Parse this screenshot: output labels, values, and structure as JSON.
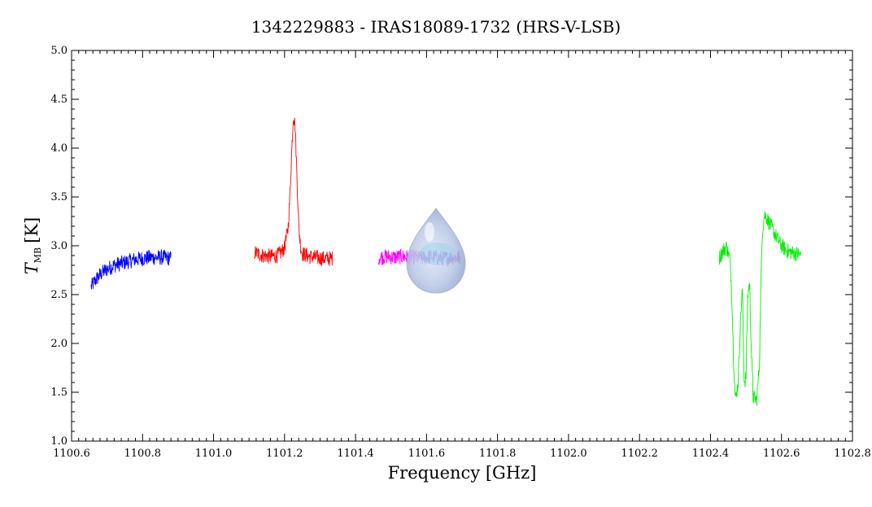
{
  "chart_data": {
    "type": "line",
    "title": "1342229883 - IRAS18089-1732 (HRS-V-LSB)",
    "xlabel": "Frequency [GHz]",
    "ylabel": {
      "symbol": "T",
      "subscript": "MB",
      "unit": "[K]"
    },
    "xlim": [
      1100.6,
      1102.8
    ],
    "ylim": [
      1.0,
      5.0
    ],
    "x_ticks": [
      "1100.6",
      "1100.8",
      "1101.0",
      "1101.2",
      "1101.4",
      "1101.6",
      "1101.8",
      "1102.0",
      "1102.2",
      "1102.4",
      "1102.6",
      "1102.8"
    ],
    "y_ticks": [
      "1.0",
      "1.5",
      "2.0",
      "2.5",
      "3.0",
      "3.5",
      "4.0",
      "4.5",
      "5.0"
    ],
    "grid": false,
    "series": [
      {
        "color": "#0000ff",
        "points": [
          [
            1100.655,
            2.58
          ],
          [
            1100.67,
            2.66
          ],
          [
            1100.685,
            2.72
          ],
          [
            1100.7,
            2.76
          ],
          [
            1100.72,
            2.8
          ],
          [
            1100.74,
            2.82
          ],
          [
            1100.76,
            2.84
          ],
          [
            1100.78,
            2.86
          ],
          [
            1100.8,
            2.87
          ],
          [
            1100.82,
            2.88
          ],
          [
            1100.84,
            2.88
          ],
          [
            1100.86,
            2.88
          ],
          [
            1100.88,
            2.87
          ]
        ]
      },
      {
        "color": "#ff0000",
        "points": [
          [
            1101.115,
            2.93
          ],
          [
            1101.14,
            2.9
          ],
          [
            1101.16,
            2.89
          ],
          [
            1101.18,
            2.9
          ],
          [
            1101.19,
            2.93
          ],
          [
            1101.2,
            2.98
          ],
          [
            1101.21,
            3.18
          ],
          [
            1101.215,
            3.5
          ],
          [
            1101.22,
            3.95
          ],
          [
            1101.225,
            4.35
          ],
          [
            1101.23,
            4.22
          ],
          [
            1101.235,
            3.7
          ],
          [
            1101.24,
            3.2
          ],
          [
            1101.245,
            3.0
          ],
          [
            1101.25,
            2.92
          ],
          [
            1101.27,
            2.89
          ],
          [
            1101.29,
            2.88
          ],
          [
            1101.31,
            2.87
          ],
          [
            1101.335,
            2.87
          ]
        ]
      },
      {
        "color": "#ff00ff",
        "points": [
          [
            1101.465,
            2.88
          ],
          [
            1101.49,
            2.89
          ],
          [
            1101.51,
            2.88
          ],
          [
            1101.53,
            2.89
          ],
          [
            1101.55,
            2.88
          ],
          [
            1101.57,
            2.88
          ]
        ]
      },
      {
        "color": "#9900cc",
        "points": [
          [
            1101.57,
            2.88
          ],
          [
            1101.59,
            2.87
          ],
          [
            1101.61,
            2.89
          ],
          [
            1101.63,
            2.88
          ],
          [
            1101.65,
            2.87
          ],
          [
            1101.67,
            2.88
          ],
          [
            1101.695,
            2.88
          ]
        ]
      },
      {
        "color": "#00ee00",
        "points": [
          [
            1102.425,
            2.88
          ],
          [
            1102.435,
            2.95
          ],
          [
            1102.445,
            2.99
          ],
          [
            1102.455,
            2.86
          ],
          [
            1102.46,
            2.5
          ],
          [
            1102.465,
            1.85
          ],
          [
            1102.47,
            1.42
          ],
          [
            1102.478,
            1.6
          ],
          [
            1102.485,
            2.3
          ],
          [
            1102.49,
            2.55
          ],
          [
            1102.495,
            1.6
          ],
          [
            1102.5,
            1.65
          ],
          [
            1102.505,
            2.5
          ],
          [
            1102.51,
            2.62
          ],
          [
            1102.515,
            1.95
          ],
          [
            1102.52,
            1.45
          ],
          [
            1102.53,
            1.42
          ],
          [
            1102.538,
            1.8
          ],
          [
            1102.542,
            2.6
          ],
          [
            1102.546,
            3.15
          ],
          [
            1102.552,
            3.32
          ],
          [
            1102.56,
            3.28
          ],
          [
            1102.57,
            3.2
          ],
          [
            1102.58,
            3.13
          ],
          [
            1102.59,
            3.06
          ],
          [
            1102.6,
            3.0
          ],
          [
            1102.615,
            2.95
          ],
          [
            1102.63,
            2.93
          ],
          [
            1102.645,
            2.92
          ],
          [
            1102.655,
            2.9
          ]
        ]
      }
    ]
  }
}
